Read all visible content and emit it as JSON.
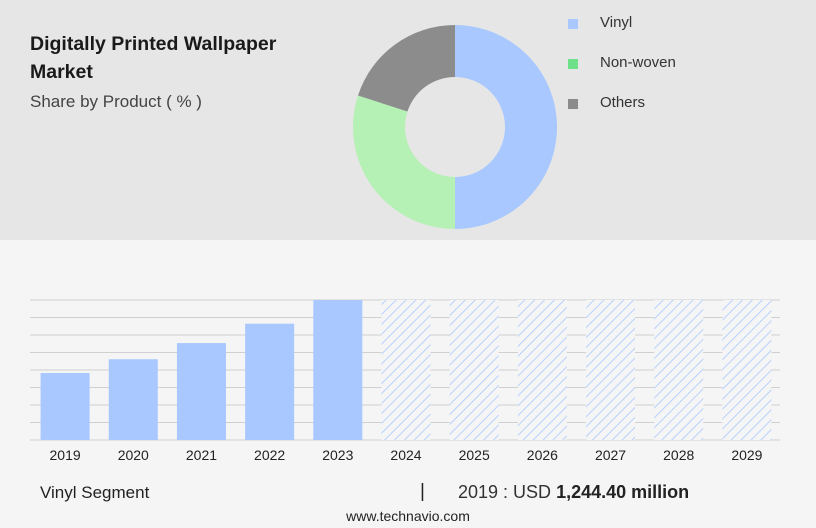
{
  "header": {
    "title": "Digitally Printed Wallpaper Market",
    "subtitle": "Share by Product ( % )"
  },
  "colors": {
    "vinyl": "#a8c8ff",
    "non_woven": "#b5f0b5",
    "others": "#8c8c8c",
    "bar": "#a8c8ff",
    "legend_vinyl": "#a8c8ff",
    "legend_non_woven": "#6fe08a",
    "legend_others": "#8c8c8c"
  },
  "chart_data": [
    {
      "type": "pie",
      "donut": true,
      "labels": [
        "Vinyl",
        "Non-woven",
        "Others"
      ],
      "values": [
        50,
        30,
        20
      ],
      "legend_placement": "right"
    },
    {
      "type": "bar",
      "categories": [
        "2019",
        "2020",
        "2021",
        "2022",
        "2023",
        "2024",
        "2025",
        "2026",
        "2027",
        "2028",
        "2029"
      ],
      "values": [
        1244.4,
        1500,
        1800,
        2160,
        2600,
        null,
        null,
        null,
        null,
        null,
        null
      ],
      "forecast_from": "2024",
      "ylim": [
        0,
        2600
      ],
      "grid": true
    }
  ],
  "footer": {
    "segment_label": "Vinyl Segment",
    "divider": "|",
    "value_prefix": "2019 : USD",
    "value_bold": "1,244.40 million",
    "url": "www.technavio.com"
  }
}
